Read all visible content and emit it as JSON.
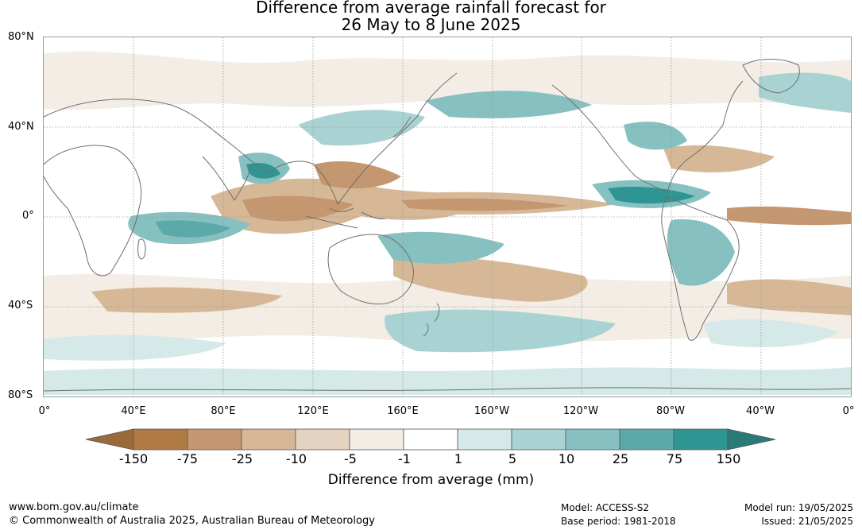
{
  "title": {
    "line1": "Difference from average rainfall forecast for",
    "line2": "26 May to 8 June 2025"
  },
  "lat_labels": [
    "80°N",
    "40°N",
    "0°",
    "40°S",
    "80°S"
  ],
  "lon_labels": [
    "0°",
    "40°E",
    "80°E",
    "120°E",
    "160°E",
    "160°W",
    "120°W",
    "80°W",
    "40°W",
    "0°"
  ],
  "colorbar": {
    "tick_labels": [
      "-150",
      "-75",
      "-25",
      "-10",
      "-5",
      "-1",
      "1",
      "5",
      "10",
      "25",
      "75",
      "150"
    ],
    "colors": [
      "#9a6a3a",
      "#b07a45",
      "#c49770",
      "#d6b897",
      "#e5d3c1",
      "#f3ede6",
      "#ffffff",
      "#d4e9e8",
      "#a9d3d2",
      "#86c0c0",
      "#5ca9a9",
      "#2f9592",
      "#2a7a78"
    ],
    "title": "Difference from average (mm)"
  },
  "footer": {
    "website": "www.bom.gov.au/climate",
    "copyright": "© Commonwealth of Australia 2025, Australian Bureau of Meteorology",
    "model": "Model: ACCESS-S2",
    "base_period": "Base period: 1981-2018",
    "model_run": "Model run: 19/05/2025",
    "issued": "Issued: 21/05/2025"
  }
}
